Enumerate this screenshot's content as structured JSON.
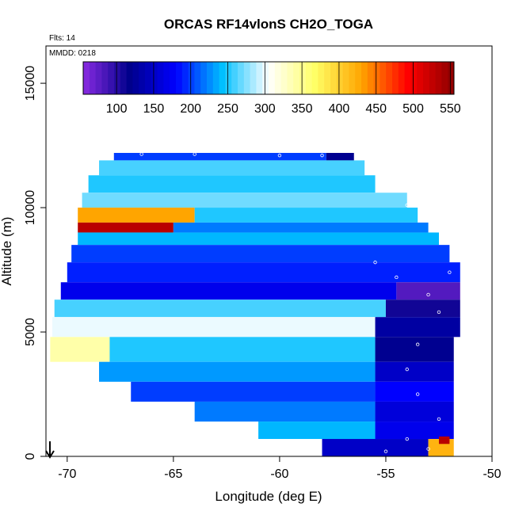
{
  "chart_data": {
    "type": "heatmap",
    "title": "ORCAS RF14vlonS CH2O_TOGA",
    "annotations": [
      "Flts: 14",
      "MMDD: 0218"
    ],
    "xlabel": "Longitude (deg E)",
    "ylabel": "Altitude (m)",
    "xlim": [
      -71,
      -50
    ],
    "ylim": [
      0,
      16500
    ],
    "xticks": [
      -70,
      -65,
      -60,
      -55,
      -50
    ],
    "yticks": [
      0,
      5000,
      10000,
      15000
    ],
    "colorbar": {
      "range": [
        55,
        555
      ],
      "ticks": [
        100,
        150,
        200,
        250,
        300,
        350,
        400,
        450,
        500,
        550
      ],
      "colors": [
        "#8a2be2",
        "#00008b",
        "#0000ff",
        "#00bfff",
        "#ffffff",
        "#ffff66",
        "#ffa500",
        "#ff0000",
        "#8b0000"
      ],
      "placement": "top"
    },
    "cells": [
      {
        "lon_range": [
          -67.8,
          -57.8
        ],
        "alt_range": [
          11900,
          12200
        ],
        "value": 200
      },
      {
        "lon_range": [
          -57.8,
          -56.5
        ],
        "alt_range": [
          11900,
          12200
        ],
        "value": 120
      },
      {
        "lon_range": [
          -68.5,
          -56.0
        ],
        "alt_range": [
          11300,
          11900
        ],
        "value": 260
      },
      {
        "lon_range": [
          -69.0,
          -55.5
        ],
        "alt_range": [
          10600,
          11300
        ],
        "value": 250
      },
      {
        "lon_range": [
          -69.3,
          -54.0
        ],
        "alt_range": [
          10000,
          10600
        ],
        "value": 270
      },
      {
        "lon_range": [
          -69.5,
          -64.0
        ],
        "alt_range": [
          9400,
          10000
        ],
        "value": 430
      },
      {
        "lon_range": [
          -64.0,
          -53.5
        ],
        "alt_range": [
          9400,
          10000
        ],
        "value": 250
      },
      {
        "lon_range": [
          -69.5,
          -65.0
        ],
        "alt_range": [
          9000,
          9400
        ],
        "value": 530
      },
      {
        "lon_range": [
          -65.0,
          -53.0
        ],
        "alt_range": [
          9000,
          9400
        ],
        "value": 220
      },
      {
        "lon_range": [
          -69.5,
          -52.5
        ],
        "alt_range": [
          8500,
          9000
        ],
        "value": 240
      },
      {
        "lon_range": [
          -69.8,
          -52.0
        ],
        "alt_range": [
          7800,
          8500
        ],
        "value": 200
      },
      {
        "lon_range": [
          -70.0,
          -51.5
        ],
        "alt_range": [
          7000,
          7800
        ],
        "value": 190
      },
      {
        "lon_range": [
          -70.3,
          -54.5
        ],
        "alt_range": [
          6300,
          7000
        ],
        "value": 170
      },
      {
        "lon_range": [
          -54.5,
          -51.5
        ],
        "alt_range": [
          6300,
          7000
        ],
        "value": 80
      },
      {
        "lon_range": [
          -70.6,
          -55.0
        ],
        "alt_range": [
          5600,
          6300
        ],
        "value": 260
      },
      {
        "lon_range": [
          -55.0,
          -51.5
        ],
        "alt_range": [
          5600,
          6300
        ],
        "value": 110
      },
      {
        "lon_range": [
          -70.7,
          -55.5
        ],
        "alt_range": [
          4800,
          5600
        ],
        "value": 300
      },
      {
        "lon_range": [
          -55.5,
          -51.5
        ],
        "alt_range": [
          4800,
          5600
        ],
        "value": 130
      },
      {
        "lon_range": [
          -70.8,
          -68.0
        ],
        "alt_range": [
          3800,
          4800
        ],
        "value": 340
      },
      {
        "lon_range": [
          -68.0,
          -55.5
        ],
        "alt_range": [
          3800,
          4800
        ],
        "value": 250
      },
      {
        "lon_range": [
          -55.5,
          -51.8
        ],
        "alt_range": [
          3800,
          4800
        ],
        "value": 120
      },
      {
        "lon_range": [
          -68.5,
          -55.5
        ],
        "alt_range": [
          3000,
          3800
        ],
        "value": 230
      },
      {
        "lon_range": [
          -55.5,
          -51.8
        ],
        "alt_range": [
          3000,
          3800
        ],
        "value": 150
      },
      {
        "lon_range": [
          -67.0,
          -55.5
        ],
        "alt_range": [
          2200,
          3000
        ],
        "value": 200
      },
      {
        "lon_range": [
          -55.5,
          -51.8
        ],
        "alt_range": [
          2200,
          3000
        ],
        "value": 180
      },
      {
        "lon_range": [
          -64.0,
          -55.5
        ],
        "alt_range": [
          1400,
          2200
        ],
        "value": 220
      },
      {
        "lon_range": [
          -55.5,
          -51.8
        ],
        "alt_range": [
          1400,
          2200
        ],
        "value": 160
      },
      {
        "lon_range": [
          -61.0,
          -55.5
        ],
        "alt_range": [
          700,
          1400
        ],
        "value": 240
      },
      {
        "lon_range": [
          -55.5,
          -51.8
        ],
        "alt_range": [
          700,
          1400
        ],
        "value": 170
      },
      {
        "lon_range": [
          -58.0,
          -53.0
        ],
        "alt_range": [
          0,
          700
        ],
        "value": 150
      },
      {
        "lon_range": [
          -53.0,
          -51.8
        ],
        "alt_range": [
          0,
          700
        ],
        "value": 420
      },
      {
        "lon_range": [
          -52.5,
          -52.0
        ],
        "alt_range": [
          500,
          800
        ],
        "value": 530
      }
    ],
    "flight_points": [
      {
        "lon": -66.5,
        "alt": 12150
      },
      {
        "lon": -64.0,
        "alt": 12150
      },
      {
        "lon": -60.0,
        "alt": 12100
      },
      {
        "lon": -58.0,
        "alt": 12100
      },
      {
        "lon": -55.0,
        "alt": 11200
      },
      {
        "lon": -54.0,
        "alt": 10100
      },
      {
        "lon": -55.5,
        "alt": 7800
      },
      {
        "lon": -54.5,
        "alt": 7200
      },
      {
        "lon": -52.0,
        "alt": 7400
      },
      {
        "lon": -53.0,
        "alt": 6500
      },
      {
        "lon": -52.5,
        "alt": 5800
      },
      {
        "lon": -53.5,
        "alt": 4500
      },
      {
        "lon": -54.0,
        "alt": 3500
      },
      {
        "lon": -53.5,
        "alt": 2500
      },
      {
        "lon": -52.5,
        "alt": 1500
      },
      {
        "lon": -54.0,
        "alt": 700
      },
      {
        "lon": -53.0,
        "alt": 300
      },
      {
        "lon": -55.0,
        "alt": 200
      }
    ]
  }
}
